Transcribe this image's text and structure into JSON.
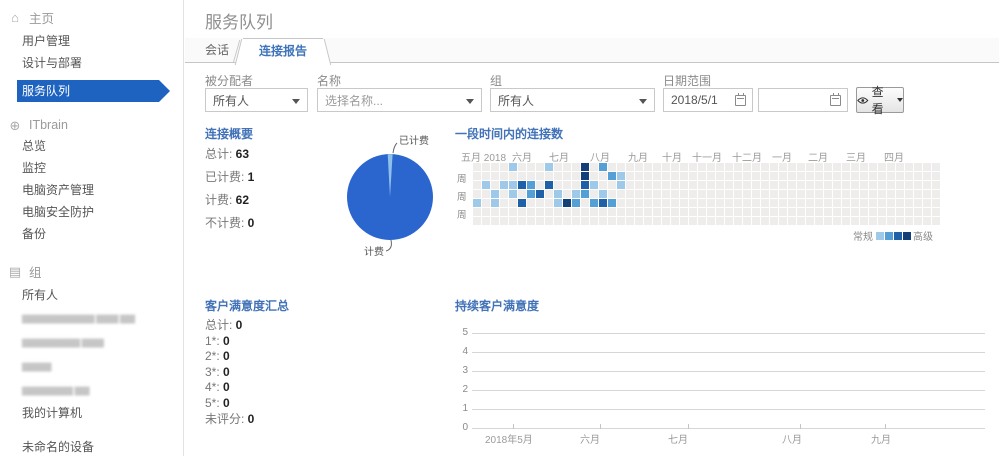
{
  "header": {
    "title": "服务队列"
  },
  "tabs": [
    {
      "label": "会话"
    },
    {
      "label": "连接报告",
      "active": true
    }
  ],
  "sidebar": {
    "sections": [
      {
        "id": "home",
        "icon": "home-icon",
        "label": "主页",
        "items": [
          {
            "label": "用户管理"
          },
          {
            "label": "设计与部署"
          },
          {
            "label": "服务队列",
            "selected": true
          }
        ]
      },
      {
        "id": "itbrain",
        "icon": "globe-icon",
        "label": "ITbrain",
        "items": [
          {
            "label": "总览"
          },
          {
            "label": "监控"
          },
          {
            "label": "电脑资产管理"
          },
          {
            "label": "电脑安全防护"
          },
          {
            "label": "备份"
          }
        ]
      },
      {
        "id": "groups",
        "icon": "group-icon",
        "label": "组",
        "items": [
          {
            "label": "所有人"
          },
          {
            "label": "▆▆▆▆▆▆▆▆▆▆ ▆▆▆ ▆▆",
            "redacted": true
          },
          {
            "label": "▆▆▆▆▆▆▆▆ ▆▆▆",
            "redacted": true
          },
          {
            "label": "▆▆▆▆",
            "redacted": true
          },
          {
            "label": "▆▆▆▆▆▆▆ ▆▆",
            "redacted": true
          },
          {
            "label": "我的计算机"
          },
          {
            "label": "未命名的设备",
            "gap": true
          }
        ]
      }
    ]
  },
  "filters": {
    "assignee": {
      "label": "被分配者",
      "value": "所有人"
    },
    "name": {
      "label": "名称",
      "placeholder": "选择名称..."
    },
    "group": {
      "label": "组",
      "value": "所有人"
    },
    "date_range": {
      "label": "日期范围",
      "start": "2018/5/1",
      "end": ""
    },
    "view_button": {
      "label": "查看"
    }
  },
  "connection_summary": {
    "title": "连接概要",
    "stats": [
      {
        "label": "总计:",
        "value": "63"
      },
      {
        "label": "已计费:",
        "value": "1"
      },
      {
        "label": "计费:",
        "value": "62"
      },
      {
        "label": "不计费:",
        "value": "0"
      }
    ],
    "pie": {
      "type": "pie",
      "slices": [
        {
          "label": "已计费",
          "value": 1,
          "color": "#8ec1ea"
        },
        {
          "label": "计费",
          "value": 62,
          "color": "#2b66cf"
        }
      ]
    }
  },
  "connections_over_time": {
    "title": "一段时间内的连接数",
    "type": "heatmap",
    "months": [
      "五月 2018",
      "六月",
      "七月",
      "八月",
      "九月",
      "十月",
      "十一月",
      "十二月",
      "一月",
      "二月",
      "三月",
      "四月"
    ],
    "week_row_labels": [
      "",
      "周",
      "",
      "周",
      "",
      "周",
      ""
    ],
    "rows": 7,
    "cols": 52,
    "palette": [
      "#efedec",
      "#9ec9e8",
      "#539fd6",
      "#1f61a9",
      "#123f77"
    ],
    "active_cells": [
      {
        "row": 0,
        "col": 4,
        "level": 1
      },
      {
        "row": 0,
        "col": 8,
        "level": 1
      },
      {
        "row": 0,
        "col": 12,
        "level": 4
      },
      {
        "row": 0,
        "col": 14,
        "level": 2
      },
      {
        "row": 1,
        "col": 12,
        "level": 4
      },
      {
        "row": 1,
        "col": 15,
        "level": 2
      },
      {
        "row": 1,
        "col": 16,
        "level": 1
      },
      {
        "row": 2,
        "col": 1,
        "level": 1
      },
      {
        "row": 2,
        "col": 3,
        "level": 1
      },
      {
        "row": 2,
        "col": 4,
        "level": 1
      },
      {
        "row": 2,
        "col": 5,
        "level": 3
      },
      {
        "row": 2,
        "col": 6,
        "level": 2
      },
      {
        "row": 2,
        "col": 8,
        "level": 3
      },
      {
        "row": 2,
        "col": 12,
        "level": 3
      },
      {
        "row": 2,
        "col": 13,
        "level": 1
      },
      {
        "row": 2,
        "col": 16,
        "level": 1
      },
      {
        "row": 3,
        "col": 2,
        "level": 1
      },
      {
        "row": 3,
        "col": 4,
        "level": 1
      },
      {
        "row": 3,
        "col": 6,
        "level": 2
      },
      {
        "row": 3,
        "col": 7,
        "level": 3
      },
      {
        "row": 3,
        "col": 9,
        "level": 1
      },
      {
        "row": 3,
        "col": 11,
        "level": 1
      },
      {
        "row": 3,
        "col": 12,
        "level": 2
      },
      {
        "row": 3,
        "col": 14,
        "level": 1
      },
      {
        "row": 4,
        "col": 0,
        "level": 1
      },
      {
        "row": 4,
        "col": 2,
        "level": 1
      },
      {
        "row": 4,
        "col": 5,
        "level": 3
      },
      {
        "row": 4,
        "col": 9,
        "level": 1
      },
      {
        "row": 4,
        "col": 10,
        "level": 4
      },
      {
        "row": 4,
        "col": 11,
        "level": 2
      },
      {
        "row": 4,
        "col": 13,
        "level": 2
      },
      {
        "row": 4,
        "col": 14,
        "level": 3
      },
      {
        "row": 4,
        "col": 15,
        "level": 2
      }
    ],
    "legend": {
      "left": "常规",
      "right": "高级"
    }
  },
  "satisfaction_summary": {
    "title": "客户满意度汇总",
    "stats": [
      {
        "label": "总计:",
        "value": "0"
      },
      {
        "label": "1*:",
        "value": "0"
      },
      {
        "label": "2*:",
        "value": "0"
      },
      {
        "label": "3*:",
        "value": "0"
      },
      {
        "label": "4*:",
        "value": "0"
      },
      {
        "label": "5*:",
        "value": "0"
      },
      {
        "label": "未评分:",
        "value": "0"
      }
    ]
  },
  "ongoing_satisfaction": {
    "title": "持续客户满意度",
    "type": "line",
    "y_ticks": [
      "5",
      "4",
      "3",
      "2",
      "1",
      "0"
    ],
    "x_labels": [
      "2018年5月",
      "六月",
      "七月",
      "八月",
      "九月"
    ],
    "series": []
  },
  "colors": {
    "sidebar_selected": "#1e63c0",
    "section_heading": "#4273b8",
    "pie_main": "#2b66cf",
    "pie_light": "#8ec1ea"
  }
}
